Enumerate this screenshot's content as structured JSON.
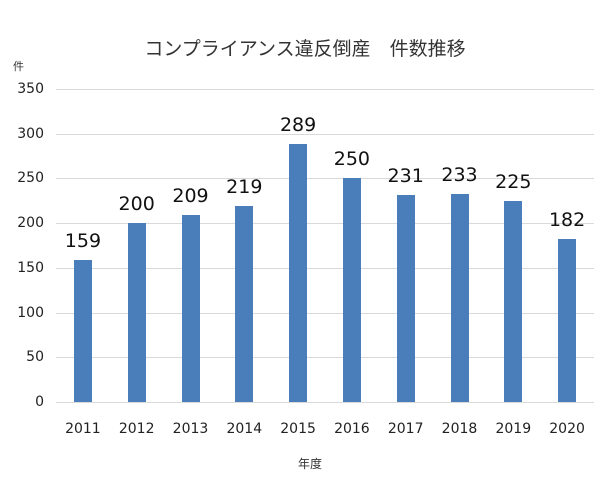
{
  "chart_data": {
    "type": "bar",
    "title": "コンプライアンス違反倒産　件数推移",
    "xlabel": "年度",
    "ylabel": "件",
    "categories": [
      "2011",
      "2012",
      "2013",
      "2014",
      "2015",
      "2016",
      "2017",
      "2018",
      "2019",
      "2020"
    ],
    "values": [
      159,
      200,
      209,
      219,
      289,
      250,
      231,
      233,
      225,
      182
    ],
    "ylim": [
      0,
      350
    ],
    "yticks": [
      0,
      50,
      100,
      150,
      200,
      250,
      300,
      350
    ],
    "grid": true,
    "legend": null,
    "bar_color": "#4a7ebb"
  }
}
